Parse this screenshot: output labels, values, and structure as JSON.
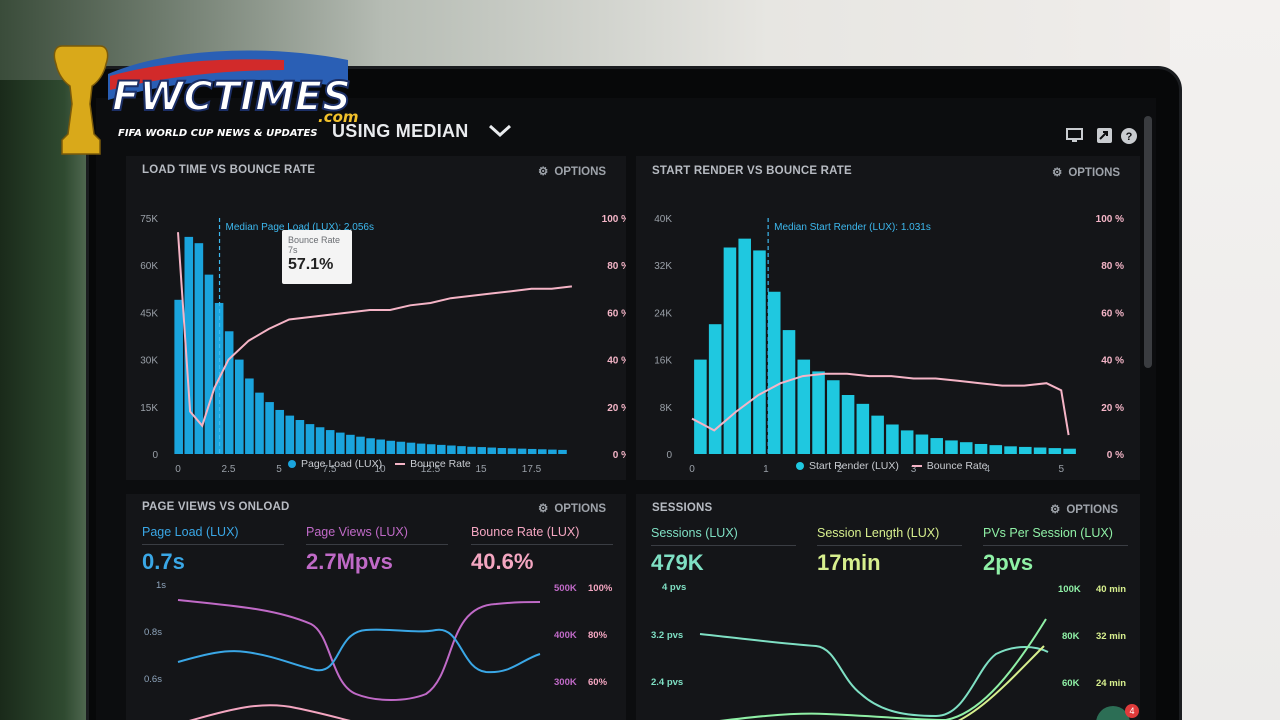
{
  "header": {
    "title": "USING MEDIAN"
  },
  "logo": {
    "brand": "FWCTIMES",
    "tld": ".com",
    "tagline": "FIFA WORLD CUP NEWS & UPDATES"
  },
  "options_label": "OPTIONS",
  "charts": [
    {
      "title": "LOAD TIME VS BOUNCE RATE",
      "median_label": "Median Page Load (LUX): 2.056s",
      "legend": [
        "Page Load (LUX)",
        "Bounce Rate"
      ],
      "tooltip": {
        "label": "Bounce Rate",
        "sub": "7s",
        "value": "57.1%"
      },
      "left_ticks": [
        "75K",
        "60K",
        "45K",
        "30K",
        "15K",
        "0"
      ],
      "right_ticks": [
        "100 %",
        "80 %",
        "60 %",
        "40 %",
        "20 %",
        "0 %"
      ],
      "x_ticks": [
        "0",
        "2.5",
        "5",
        "7.5",
        "10",
        "12.5",
        "15",
        "17.5"
      ]
    },
    {
      "title": "START RENDER VS BOUNCE RATE",
      "median_label": "Median Start Render (LUX): 1.031s",
      "legend": [
        "Start Render (LUX)",
        "Bounce Rate"
      ],
      "left_ticks": [
        "40K",
        "32K",
        "24K",
        "16K",
        "8K",
        "0"
      ],
      "right_ticks": [
        "100 %",
        "80 %",
        "60 %",
        "40 %",
        "20 %",
        "0 %"
      ],
      "x_ticks": [
        "0",
        "1",
        "2",
        "3",
        "4",
        "5"
      ]
    }
  ],
  "chart_data": [
    {
      "type": "bar",
      "title": "LOAD TIME VS BOUNCE RATE",
      "xlim": [
        0,
        20
      ],
      "ylim": [
        0,
        75000
      ],
      "y2lim": [
        0,
        100
      ],
      "median_x": 2.056,
      "series": [
        {
          "name": "Page Load (LUX)",
          "type": "bar",
          "x": [
            0,
            0.5,
            1,
            1.5,
            2,
            2.5,
            3,
            3.5,
            4,
            4.5,
            5,
            5.5,
            6,
            6.5,
            7,
            7.5,
            8,
            8.5,
            9,
            9.5,
            10,
            10.5,
            11,
            11.5,
            12,
            12.5,
            13,
            13.5,
            14,
            14.5,
            15,
            15.5,
            16,
            16.5,
            17,
            17.5,
            18,
            18.5,
            19
          ],
          "values": [
            49000,
            69000,
            67000,
            57000,
            48000,
            39000,
            30000,
            24000,
            19500,
            16500,
            14000,
            12200,
            10800,
            9500,
            8500,
            7600,
            6800,
            6100,
            5500,
            5000,
            4600,
            4200,
            3900,
            3600,
            3300,
            3100,
            2900,
            2700,
            2500,
            2300,
            2200,
            2050,
            1900,
            1800,
            1700,
            1600,
            1500,
            1400,
            1300
          ]
        },
        {
          "name": "Bounce Rate",
          "type": "line",
          "x": [
            0,
            0.6,
            1.2,
            1.8,
            2.5,
            3.5,
            4.5,
            5.5,
            6.5,
            7.5,
            8.5,
            9.5,
            10.5,
            11.5,
            12.5,
            13.5,
            14.5,
            15.5,
            16.5,
            17.5,
            18.5,
            19.5
          ],
          "values": [
            94,
            18,
            12,
            28,
            40,
            48,
            53,
            57,
            58,
            59,
            60,
            61,
            61,
            63,
            64,
            66,
            67,
            68,
            69,
            70,
            70,
            71
          ]
        }
      ]
    },
    {
      "type": "bar",
      "title": "START RENDER VS BOUNCE RATE",
      "xlim": [
        0,
        5.2
      ],
      "ylim": [
        0,
        40000
      ],
      "y2lim": [
        0,
        100
      ],
      "median_x": 1.031,
      "series": [
        {
          "name": "Start Render (LUX)",
          "type": "bar",
          "x": [
            0.1,
            0.3,
            0.5,
            0.7,
            0.9,
            1.1,
            1.3,
            1.5,
            1.7,
            1.9,
            2.1,
            2.3,
            2.5,
            2.7,
            2.9,
            3.1,
            3.3,
            3.5,
            3.7,
            3.9,
            4.1,
            4.3,
            4.5,
            4.7,
            4.9,
            5.1
          ],
          "values": [
            16000,
            22000,
            35000,
            36500,
            34500,
            27500,
            21000,
            16000,
            14000,
            12500,
            10000,
            8500,
            6500,
            5000,
            4000,
            3300,
            2700,
            2300,
            2000,
            1700,
            1500,
            1300,
            1200,
            1100,
            1000,
            900
          ]
        },
        {
          "name": "Bounce Rate",
          "type": "line",
          "x": [
            0,
            0.3,
            0.6,
            0.9,
            1.2,
            1.5,
            1.8,
            2.1,
            2.4,
            2.7,
            3.0,
            3.3,
            3.6,
            3.9,
            4.2,
            4.5,
            4.8,
            5.0,
            5.1
          ],
          "values": [
            15,
            10,
            18,
            25,
            30,
            33,
            34,
            34,
            33,
            33,
            32,
            32,
            31,
            30,
            29,
            29,
            30,
            27,
            8
          ]
        }
      ]
    }
  ],
  "lower": {
    "pageviews_title": "PAGE VIEWS VS ONLOAD",
    "sessions_title": "SESSIONS",
    "metrics": [
      {
        "label": "Page Load (LUX)",
        "value": "0.7s",
        "color": "#3aa7e6"
      },
      {
        "label": "Page Views (LUX)",
        "value": "2.7Mpvs",
        "color": "#c06ac7"
      },
      {
        "label": "Bounce Rate (LUX)",
        "value": "40.6%",
        "color": "#f4a6c1"
      },
      {
        "label": "Sessions (LUX)",
        "value": "479K",
        "color": "#7fe0c4"
      },
      {
        "label": "Session Length (LUX)",
        "value": "17min",
        "color": "#d7ef8e"
      },
      {
        "label": "PVs Per Session (LUX)",
        "value": "2pvs",
        "color": "#8ff0a6"
      }
    ],
    "pv_left_ticks": [
      "1s",
      "0.8s",
      "0.6s"
    ],
    "pv_mid_ticks": [
      "500K",
      "400K",
      "300K"
    ],
    "pv_right_ticks": [
      "100%",
      "80%",
      "60%"
    ],
    "ss_left_ticks": [
      "4 pvs",
      "3.2 pvs",
      "2.4 pvs"
    ],
    "ss_mid_ticks": [
      "100K",
      "80K",
      "60K"
    ],
    "ss_right_ticks": [
      "40 min",
      "32 min",
      "24 min"
    ]
  },
  "chat_badge": "4",
  "colors": {
    "bar": "#1aa4dd",
    "bar2": "#1fc8e0",
    "line": "#f5b4c6",
    "median": "#3db8ee"
  }
}
